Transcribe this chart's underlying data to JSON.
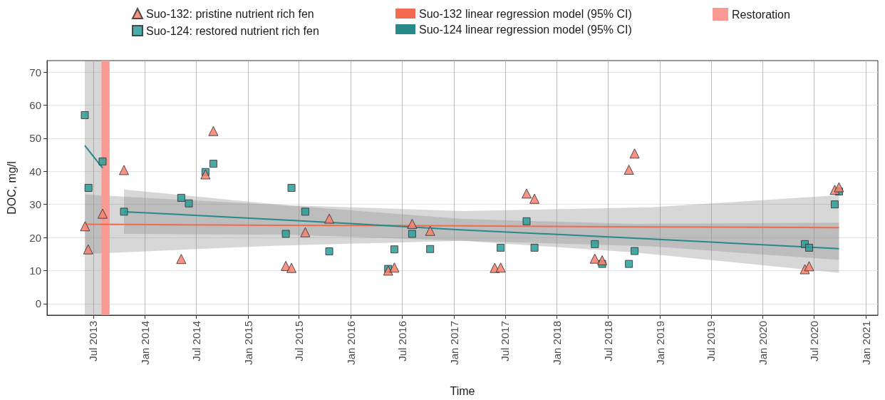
{
  "chart_data": {
    "type": "scatter",
    "xlabel": "Time",
    "ylabel": "DOC, mg/l",
    "xlim": [
      "2013-01-18",
      "2021-02-12"
    ],
    "ylim": [
      -3.5,
      73.5
    ],
    "xticks": [
      {
        "value": "2013-07",
        "label": "Jul 2013"
      },
      {
        "value": "2014-01",
        "label": "Jan 2014"
      },
      {
        "value": "2014-07",
        "label": "Jul 2014"
      },
      {
        "value": "2015-01",
        "label": "Jan 2015"
      },
      {
        "value": "2015-07",
        "label": "Jul 2015"
      },
      {
        "value": "2016-01",
        "label": "Jan 2016"
      },
      {
        "value": "2016-07",
        "label": "Jul 2016"
      },
      {
        "value": "2017-01",
        "label": "Jan 2017"
      },
      {
        "value": "2017-07",
        "label": "Jul 2017"
      },
      {
        "value": "2018-01",
        "label": "Jan 2018"
      },
      {
        "value": "2018-07",
        "label": "Jul 2018"
      },
      {
        "value": "2019-01",
        "label": "Jan 2019"
      },
      {
        "value": "2019-07",
        "label": "Jul 2019"
      },
      {
        "value": "2020-01",
        "label": "Jan 2020"
      },
      {
        "value": "2020-07",
        "label": "Jul 2020"
      },
      {
        "value": "2021-01",
        "label": "Jan 2021"
      }
    ],
    "yticks": [
      0,
      10,
      20,
      30,
      40,
      50,
      60,
      70
    ],
    "grid": true,
    "legend": "top",
    "series": [
      {
        "name": "Suo-132: pristine nutrient rich fen",
        "marker": "triangle",
        "color": "#f8806f",
        "x": [
          "2013-06-02",
          "2013-06-13",
          "2013-08-03",
          "2013-10-18",
          "2014-05-09",
          "2014-08-03",
          "2014-08-31",
          "2015-05-15",
          "2015-06-04",
          "2015-07-23",
          "2015-10-16",
          "2016-05-12",
          "2016-06-03",
          "2016-08-05",
          "2016-10-08",
          "2017-05-25",
          "2017-06-15",
          "2017-09-15",
          "2017-10-13",
          "2018-05-15",
          "2018-06-10",
          "2018-09-13",
          "2018-10-03",
          "2020-05-29",
          "2020-06-13",
          "2020-09-12",
          "2020-09-27"
        ],
        "values": [
          23.4,
          16.4,
          27.2,
          40.4,
          13.5,
          39.1,
          52.2,
          11.4,
          10.8,
          21.6,
          25.7,
          10.0,
          10.9,
          24.1,
          22.0,
          10.8,
          10.9,
          33.3,
          31.7,
          13.6,
          13.1,
          40.5,
          45.4,
          10.4,
          11.3,
          34.4,
          35.2
        ]
      },
      {
        "name": "Suo-124: restored nutrient rich fen",
        "marker": "square",
        "color": "#2a9d99",
        "x": [
          "2013-06-01",
          "2013-06-14",
          "2013-08-03",
          "2013-10-18",
          "2014-05-09",
          "2014-06-05",
          "2014-08-03",
          "2014-08-31",
          "2015-05-15",
          "2015-06-04",
          "2015-07-23",
          "2015-10-16",
          "2016-05-12",
          "2016-06-03",
          "2016-08-05",
          "2016-10-08",
          "2017-06-15",
          "2017-09-15",
          "2017-10-13",
          "2018-05-15",
          "2018-06-10",
          "2018-09-13",
          "2018-10-03",
          "2020-05-29",
          "2020-06-13",
          "2020-09-12",
          "2020-09-27"
        ],
        "values": [
          57.0,
          35.0,
          43.0,
          27.8,
          32.0,
          30.3,
          39.8,
          42.3,
          21.1,
          35.0,
          27.8,
          15.8,
          10.5,
          16.4,
          21.1,
          16.5,
          16.9,
          24.9,
          16.9,
          18.0,
          12.0,
          12.0,
          15.9,
          18.0,
          16.9,
          30.0,
          33.9
        ]
      },
      {
        "name": "Suo-132 linear regression model (95% CI)",
        "type": "line",
        "color": "#f26b50",
        "x": [
          "2013-06-02",
          "2015-04-01",
          "2017-02-01",
          "2018-12-01",
          "2020-09-27"
        ],
        "values": [
          24.0,
          23.7,
          23.5,
          23.2,
          23.0
        ],
        "lower": [
          15.0,
          17.5,
          19.0,
          17.3,
          13.2
        ],
        "upper": [
          33.0,
          29.9,
          28.0,
          29.1,
          32.8
        ]
      },
      {
        "name": "Suo-124 linear regression model (95% CI)",
        "type": "line",
        "color": "#27898a",
        "x": [
          "2013-06-01",
          "2013-08-03",
          "2013-09-15",
          "2013-10-18",
          "2015-06-01",
          "2017-02-01",
          "2018-10-01",
          "2020-09-27"
        ],
        "values": [
          47.8,
          41.0,
          null,
          27.8,
          25.2,
          22.3,
          19.8,
          16.6
        ],
        "lower": [
          -3.5,
          -3.5,
          null,
          21.1,
          20.8,
          19.0,
          15.5,
          9.3
        ],
        "upper": [
          73.5,
          73.5,
          null,
          34.5,
          29.6,
          25.6,
          24.1,
          24.5
        ]
      }
    ],
    "bands": [
      {
        "axis": "x",
        "from": "2013-07-30",
        "to": "2013-08-28",
        "label": "Restoration",
        "color": "#fa9a93"
      }
    ]
  }
}
